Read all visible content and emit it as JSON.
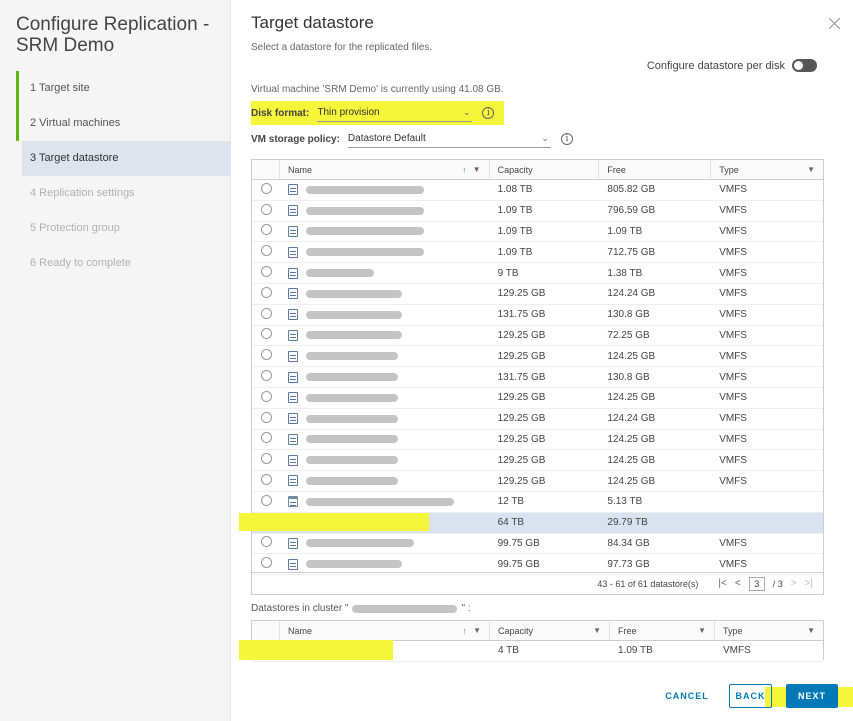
{
  "wizard": {
    "title": "Configure Replication - SRM Demo",
    "steps": [
      {
        "label": "1  Target site",
        "state": "done"
      },
      {
        "label": "2  Virtual machines",
        "state": "done"
      },
      {
        "label": "3  Target datastore",
        "state": "active"
      },
      {
        "label": "4  Replication settings",
        "state": "disabled"
      },
      {
        "label": "5  Protection group",
        "state": "disabled"
      },
      {
        "label": "6  Ready to complete",
        "state": "disabled"
      }
    ]
  },
  "page": {
    "title": "Target datastore",
    "subtitle": "Select a datastore for the replicated files.",
    "per_disk_label": "Configure datastore per disk",
    "per_disk_enabled": false,
    "usage_text": "Virtual machine 'SRM Demo' is currently using 41.08 GB.",
    "disk_format_label": "Disk format:",
    "disk_format_value": "Thin provision",
    "policy_label": "VM storage policy:",
    "policy_value": "Datastore Default"
  },
  "grid": {
    "columns": {
      "name": "Name",
      "capacity": "Capacity",
      "free": "Free",
      "type": "Type"
    },
    "rows": [
      {
        "capacity": "1.08 TB",
        "free": "805.82 GB",
        "type": "VMFS",
        "icon": "datastore-icon",
        "selected": false
      },
      {
        "capacity": "1.09 TB",
        "free": "796.59 GB",
        "type": "VMFS",
        "icon": "datastore-icon",
        "selected": false
      },
      {
        "capacity": "1.09 TB",
        "free": "1.09 TB",
        "type": "VMFS",
        "icon": "datastore-icon",
        "selected": false
      },
      {
        "capacity": "1.09 TB",
        "free": "712.75 GB",
        "type": "VMFS",
        "icon": "datastore-icon",
        "selected": false
      },
      {
        "capacity": "9 TB",
        "free": "1.38 TB",
        "type": "VMFS",
        "icon": "datastore-icon",
        "selected": false
      },
      {
        "capacity": "129.25 GB",
        "free": "124.24 GB",
        "type": "VMFS",
        "icon": "datastore-icon",
        "selected": false
      },
      {
        "capacity": "131.75 GB",
        "free": "130.8 GB",
        "type": "VMFS",
        "icon": "datastore-icon",
        "selected": false
      },
      {
        "capacity": "129.25 GB",
        "free": "72.25 GB",
        "type": "VMFS",
        "icon": "datastore-icon",
        "selected": false
      },
      {
        "capacity": "129.25 GB",
        "free": "124.25 GB",
        "type": "VMFS",
        "icon": "datastore-icon",
        "selected": false
      },
      {
        "capacity": "131.75 GB",
        "free": "130.8 GB",
        "type": "VMFS",
        "icon": "datastore-icon",
        "selected": false
      },
      {
        "capacity": "129.25 GB",
        "free": "124.25 GB",
        "type": "VMFS",
        "icon": "datastore-icon",
        "selected": false
      },
      {
        "capacity": "129.25 GB",
        "free": "124.24 GB",
        "type": "VMFS",
        "icon": "datastore-icon",
        "selected": false
      },
      {
        "capacity": "129.25 GB",
        "free": "124.25 GB",
        "type": "VMFS",
        "icon": "datastore-icon",
        "selected": false
      },
      {
        "capacity": "129.25 GB",
        "free": "124.25 GB",
        "type": "VMFS",
        "icon": "datastore-icon",
        "selected": false
      },
      {
        "capacity": "129.25 GB",
        "free": "124.25 GB",
        "type": "VMFS",
        "icon": "datastore-icon",
        "selected": false
      },
      {
        "capacity": "12 TB",
        "free": "5.13 TB",
        "type": "",
        "icon": "datastore-cluster-icon",
        "selected": false
      },
      {
        "capacity": "64 TB",
        "free": "29.79 TB",
        "type": "",
        "icon": "datastore-cluster-icon",
        "selected": true
      },
      {
        "capacity": "99.75 GB",
        "free": "84.34 GB",
        "type": "VMFS",
        "icon": "datastore-icon",
        "selected": false
      },
      {
        "capacity": "99.75 GB",
        "free": "97.73 GB",
        "type": "VMFS",
        "icon": "datastore-icon",
        "selected": false
      }
    ],
    "footer": {
      "range": "43 - 61 of 61 datastore(s)",
      "page_current": "3",
      "page_total": "/ 3"
    }
  },
  "cluster_grid": {
    "label_prefix": "Datastores in cluster \"",
    "label_suffix": "\" :",
    "rows": [
      {
        "capacity": "4 TB",
        "free": "1.09 TB",
        "type": "VMFS"
      }
    ]
  },
  "buttons": {
    "cancel": "CANCEL",
    "back": "BACK",
    "next": "NEXT"
  }
}
